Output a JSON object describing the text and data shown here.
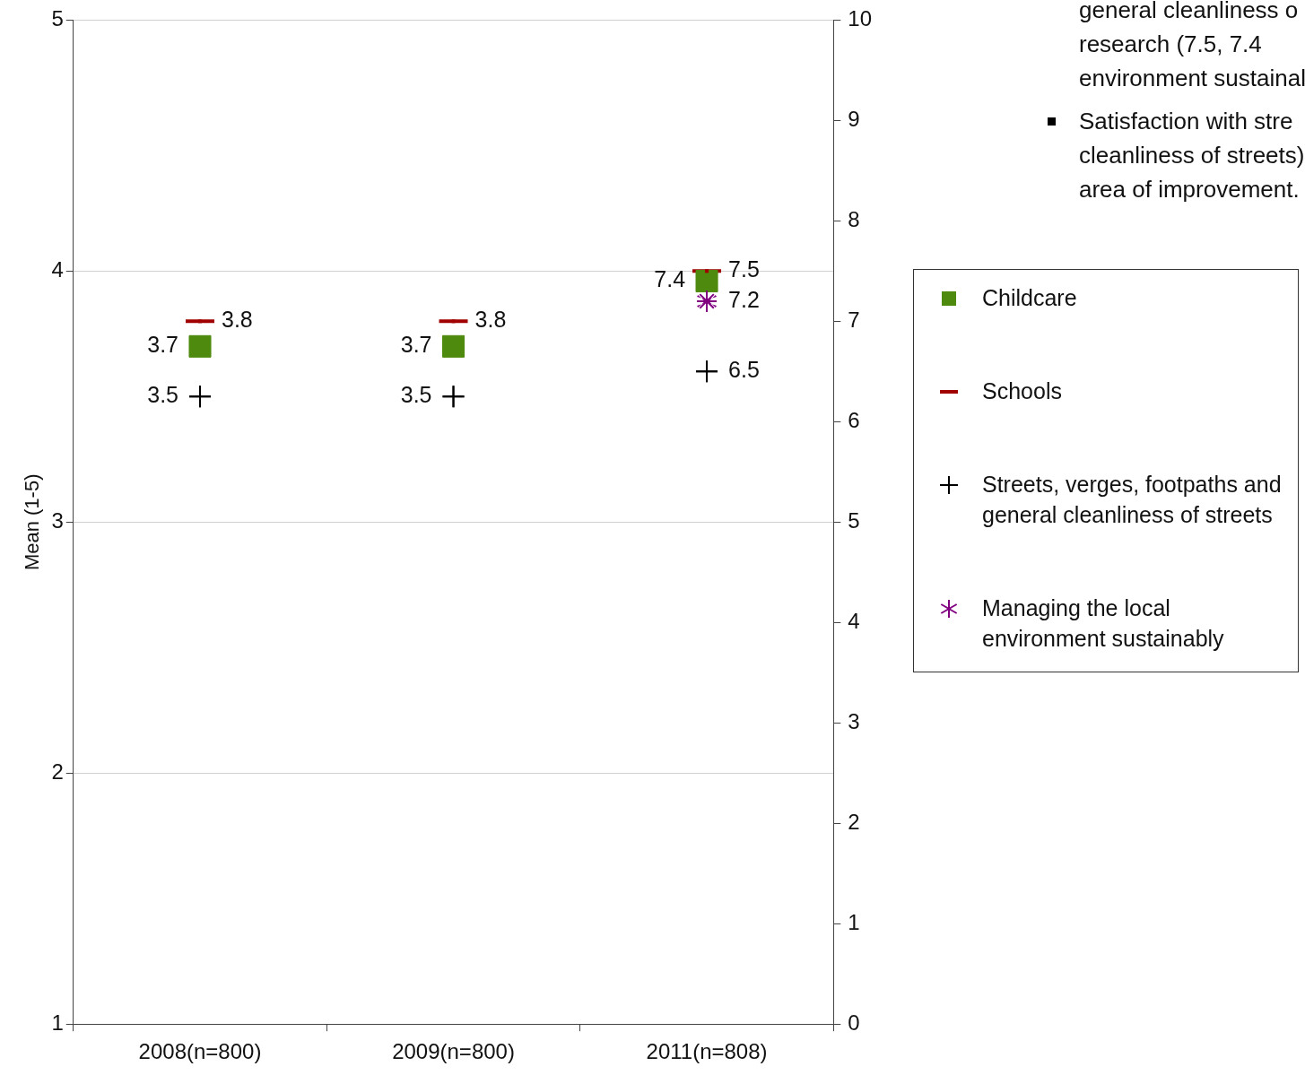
{
  "chart_data": {
    "type": "scatter",
    "ylabel": "Mean (1-5)",
    "categories": [
      "2008(n=800)",
      "2009(n=800)",
      "2011(n=808)"
    ],
    "ylim": [
      1,
      5
    ],
    "yticks": [
      1,
      2,
      3,
      4,
      5
    ],
    "y2lim": [
      0,
      10
    ],
    "y2ticks": [
      0,
      1,
      2,
      3,
      4,
      5,
      6,
      7,
      8,
      9,
      10
    ],
    "grid": "y",
    "legend": "right",
    "data_labels": true,
    "series": [
      {
        "name": "Childcare",
        "color": "#4e8a0e",
        "marker": "square",
        "values": [
          3.7,
          3.7,
          null
        ]
      },
      {
        "name": "Schools",
        "color": "#a00000",
        "values": [
          3.8,
          3.8,
          null
        ]
      },
      {
        "name": "Streets, verges, footpaths and general cleanliness of streets",
        "color": "#000000",
        "marker": "cross",
        "values": [
          3.5,
          3.5,
          null
        ]
      },
      {
        "color": "#4e8a0e",
        "marker": "square",
        "axis": "y2",
        "values": [
          null,
          null,
          7.4
        ]
      },
      {
        "color": "#a00000",
        "axis": "y2",
        "values": [
          null,
          null,
          7.5
        ]
      },
      {
        "color": "#000000",
        "marker": "cross",
        "axis": "y2",
        "values": [
          null,
          null,
          6.5
        ]
      },
      {
        "name": "Managing the local environment sustainably",
        "color": "#800080",
        "marker": "star",
        "axis": "y2",
        "values": [
          null,
          null,
          7.2
        ]
      }
    ],
    "annotations": [
      "general cleanliness o",
      "research (7.5, 7.4",
      "environment sustainal",
      "Satisfaction with stre",
      "cleanliness of streets)",
      "area of improvement."
    ]
  }
}
